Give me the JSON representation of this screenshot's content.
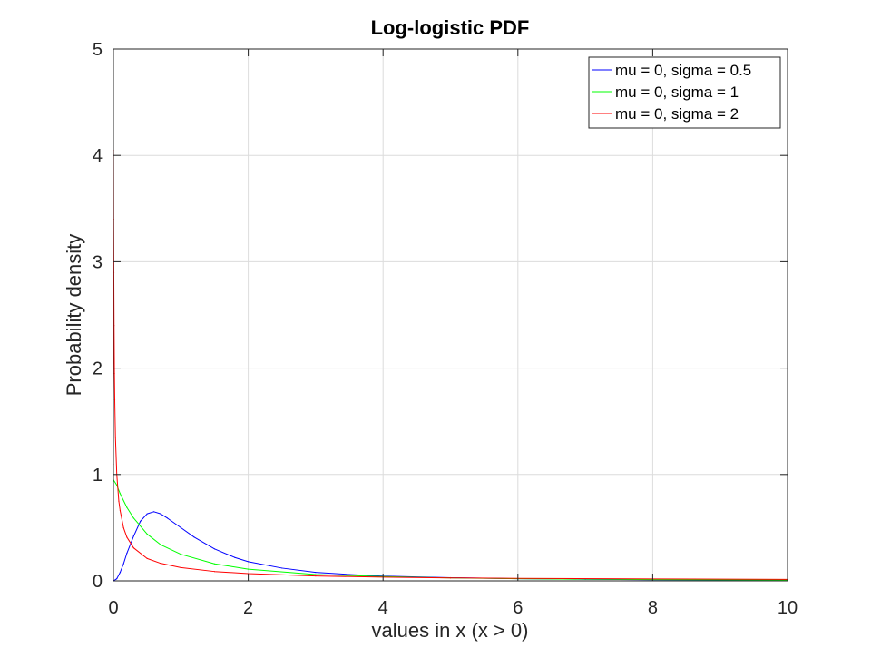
{
  "chart_data": {
    "type": "line",
    "title": "Log-logistic PDF",
    "xlabel": "values in x (x > 0)",
    "ylabel": "Probability density",
    "xlim": [
      0,
      10
    ],
    "ylim": [
      0,
      5
    ],
    "xticks": [
      0,
      2,
      4,
      6,
      8,
      10
    ],
    "yticks": [
      0,
      1,
      2,
      3,
      4,
      5
    ],
    "xtick_labels": [
      "0",
      "2",
      "4",
      "6",
      "8",
      "10"
    ],
    "ytick_labels": [
      "0",
      "1",
      "2",
      "3",
      "4",
      "5"
    ],
    "grid": true,
    "legend_position": "top-right",
    "series": [
      {
        "name": "mu = 0, sigma = 0.5",
        "color": "#0000ff",
        "x": [
          0.0,
          0.05,
          0.1,
          0.15,
          0.2,
          0.3,
          0.4,
          0.5,
          0.6,
          0.7,
          0.8,
          1.0,
          1.2,
          1.5,
          1.8,
          2.0,
          2.5,
          3.0,
          3.5,
          4.0,
          5.0,
          6.0,
          7.0,
          8.0,
          9.0,
          10.0
        ],
        "y": [
          0.0,
          0.02,
          0.08,
          0.16,
          0.26,
          0.42,
          0.56,
          0.63,
          0.65,
          0.63,
          0.59,
          0.5,
          0.41,
          0.3,
          0.22,
          0.18,
          0.12,
          0.08,
          0.06,
          0.045,
          0.03,
          0.02,
          0.015,
          0.011,
          0.009,
          0.007
        ]
      },
      {
        "name": "mu = 0, sigma = 1",
        "color": "#00ff00",
        "x": [
          0.0,
          0.05,
          0.1,
          0.2,
          0.3,
          0.5,
          0.7,
          1.0,
          1.5,
          2.0,
          3.0,
          4.0,
          5.0,
          6.0,
          8.0,
          10.0
        ],
        "y": [
          0.95,
          0.9,
          0.82,
          0.69,
          0.59,
          0.44,
          0.34,
          0.25,
          0.16,
          0.11,
          0.06,
          0.04,
          0.028,
          0.02,
          0.012,
          0.008
        ]
      },
      {
        "name": "mu = 0, sigma = 2",
        "color": "#ff0000",
        "x": [
          0.0,
          0.001,
          0.003,
          0.006,
          0.01,
          0.015,
          0.02,
          0.03,
          0.05,
          0.08,
          0.1,
          0.15,
          0.2,
          0.3,
          0.5,
          0.7,
          1.0,
          1.5,
          2.0,
          3.0,
          4.0,
          5.0,
          6.0,
          8.0,
          10.0
        ],
        "y": [
          1.1,
          4.05,
          3.4,
          2.9,
          2.4,
          1.95,
          1.7,
          1.35,
          1.0,
          0.75,
          0.66,
          0.5,
          0.41,
          0.31,
          0.21,
          0.165,
          0.125,
          0.088,
          0.068,
          0.046,
          0.035,
          0.028,
          0.024,
          0.018,
          0.014
        ]
      }
    ]
  }
}
